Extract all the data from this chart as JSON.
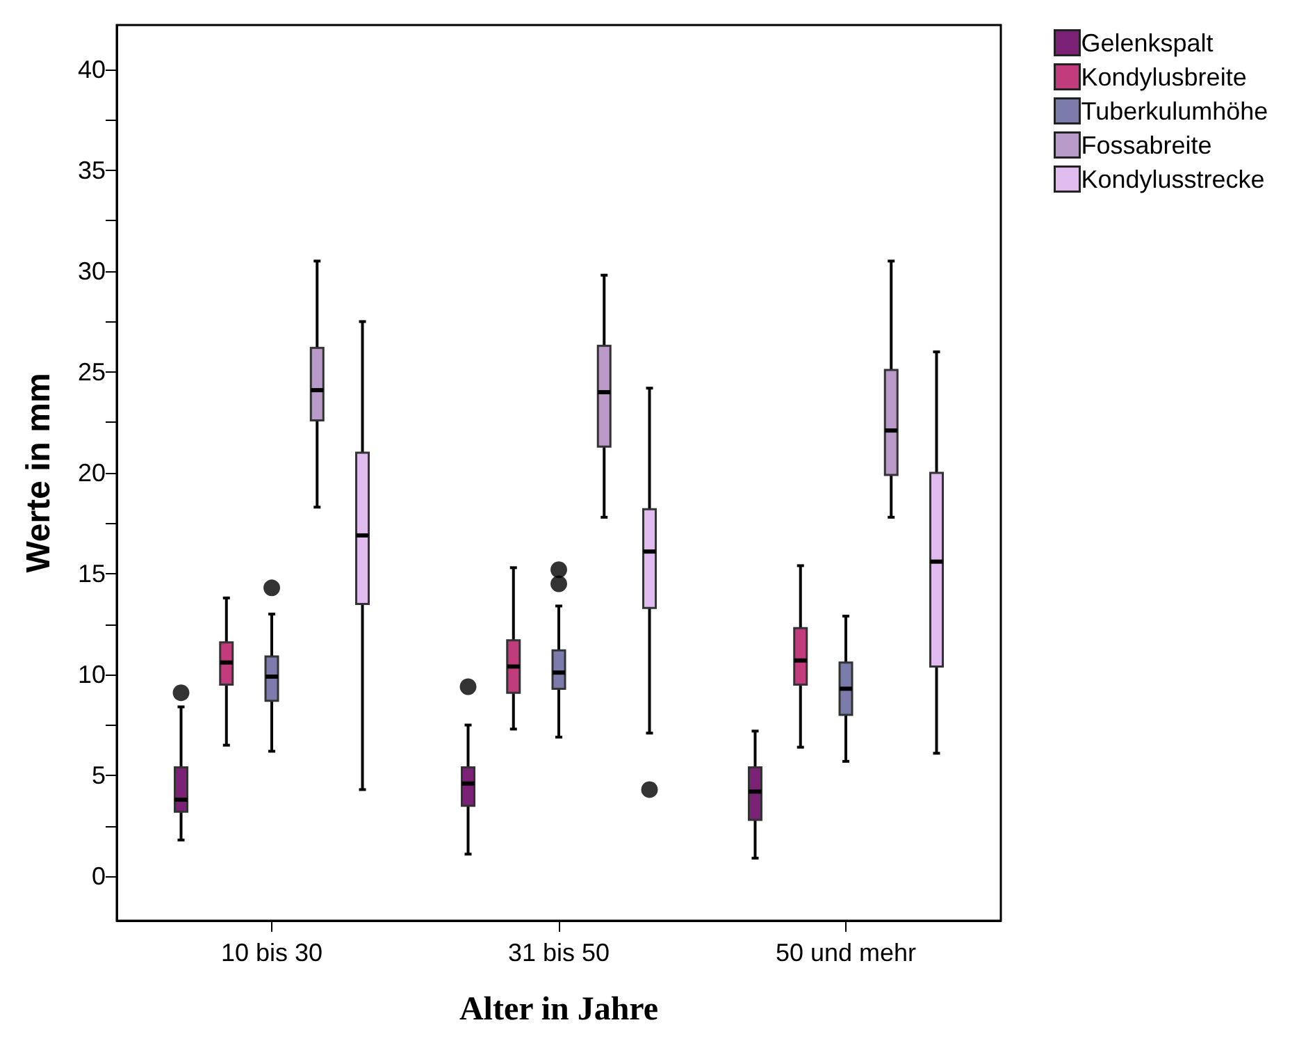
{
  "chart_data": {
    "type": "box",
    "xlabel": "Alter in Jahre",
    "ylabel": "Werte in mm",
    "categories": [
      "10 bis 30",
      "31 bis 50",
      "50 und mehr"
    ],
    "ylim": [
      -2.2,
      42.2
    ],
    "yticks": [
      0,
      {
        "value": 2.5,
        "label": null
      },
      5,
      {
        "value": 7.5,
        "label": null
      },
      10,
      {
        "value": 12.5,
        "label": null
      },
      15,
      {
        "value": 17.5,
        "label": null
      },
      20,
      {
        "value": 22.5,
        "label": null
      },
      25,
      {
        "value": 27.5,
        "label": null
      },
      30,
      {
        "value": 32.5,
        "label": null
      },
      35,
      {
        "value": 37.5,
        "label": null
      },
      40
    ],
    "grid": false,
    "legend": "top right",
    "series": [
      {
        "name": "Gelenkspalt",
        "color": "#7b2277",
        "boxes": [
          {
            "low": 1.8,
            "q1": 3.2,
            "median": 3.8,
            "q3": 5.4,
            "high": 8.4,
            "outliers": [
              9.1
            ]
          },
          {
            "low": 1.1,
            "q1": 3.5,
            "median": 4.6,
            "q3": 5.4,
            "high": 7.5,
            "outliers": [
              9.4
            ]
          },
          {
            "low": 0.9,
            "q1": 2.8,
            "median": 4.2,
            "q3": 5.4,
            "high": 7.2
          }
        ]
      },
      {
        "name": "Kondylusbreite",
        "color": "#c23c7d",
        "boxes": [
          {
            "low": 6.5,
            "q1": 9.5,
            "median": 10.6,
            "q3": 11.6,
            "high": 13.8
          },
          {
            "low": 7.3,
            "q1": 9.1,
            "median": 10.4,
            "q3": 11.7,
            "high": 15.3
          },
          {
            "low": 6.4,
            "q1": 9.5,
            "median": 10.7,
            "q3": 12.3,
            "high": 15.4
          }
        ]
      },
      {
        "name": "Tuberkulumhöhe",
        "color": "#7b7cab",
        "boxes": [
          {
            "low": 6.2,
            "q1": 8.7,
            "median": 9.9,
            "q3": 10.9,
            "high": 13.0,
            "outliers": [
              14.3
            ]
          },
          {
            "low": 6.9,
            "q1": 9.3,
            "median": 10.1,
            "q3": 11.2,
            "high": 13.4,
            "outliers": [
              14.5,
              15.2
            ]
          },
          {
            "low": 5.7,
            "q1": 8.0,
            "median": 9.3,
            "q3": 10.6,
            "high": 12.9
          }
        ]
      },
      {
        "name": "Fossabreite",
        "color": "#b99ac8",
        "boxes": [
          {
            "low": 18.3,
            "q1": 22.6,
            "median": 24.1,
            "q3": 26.2,
            "high": 30.5
          },
          {
            "low": 17.8,
            "q1": 21.3,
            "median": 24.0,
            "q3": 26.3,
            "high": 29.8
          },
          {
            "low": 17.8,
            "q1": 19.9,
            "median": 22.1,
            "q3": 25.1,
            "high": 30.5
          }
        ]
      },
      {
        "name": "Kondylusstrecke",
        "color": "#e0bbf0",
        "boxes": [
          {
            "low": 4.3,
            "q1": 13.5,
            "median": 16.9,
            "q3": 21.0,
            "high": 27.5
          },
          {
            "low": 7.1,
            "q1": 13.3,
            "median": 16.1,
            "q3": 18.2,
            "high": 24.2,
            "outliers": [
              4.3
            ]
          },
          {
            "low": 6.1,
            "q1": 10.4,
            "median": 15.6,
            "q3": 20.0,
            "high": 26.0
          }
        ]
      }
    ]
  }
}
